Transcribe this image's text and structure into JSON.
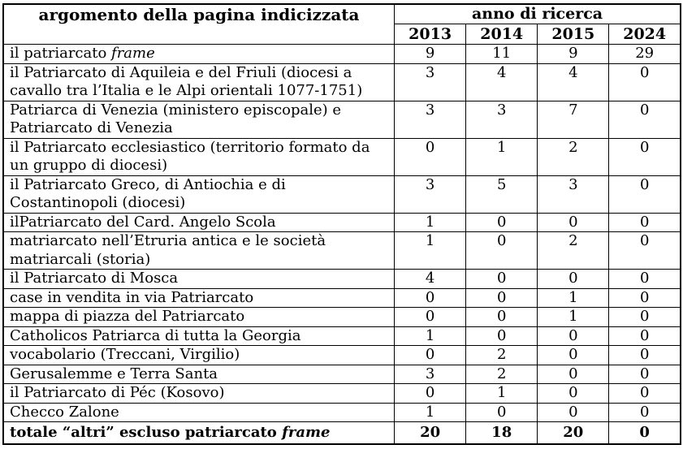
{
  "chart_data": {
    "type": "table",
    "topic_header": "argomento della pagina indicizzata",
    "year_group_header": "anno di ricerca",
    "year_columns": [
      "2013",
      "2014",
      "2015",
      "2024"
    ],
    "rows": [
      {
        "text": "il patriarcato ",
        "italic": "frame",
        "values": [
          "9",
          "11",
          "9",
          "29"
        ],
        "bold": false
      },
      {
        "text": "il Patriarcato di Aquileia e del Friuli (diocesi a cavallo tra l’Italia e le Alpi orientali 1077-1751)",
        "italic": "",
        "values": [
          "3",
          "4",
          "4",
          "0"
        ],
        "bold": false
      },
      {
        "text": "Patriarca di Venezia (ministero episcopale) e Patriarcato di Venezia",
        "italic": "",
        "values": [
          "3",
          "3",
          "7",
          "0"
        ],
        "bold": false
      },
      {
        "text": "il Patriarcato ecclesiastico (territorio formato da un gruppo di diocesi)",
        "italic": "",
        "values": [
          "0",
          "1",
          "2",
          "0"
        ],
        "bold": false
      },
      {
        "text": "il Patriarcato Greco, di Antiochia e di Costantinopoli (diocesi)",
        "italic": "",
        "values": [
          "3",
          "5",
          "3",
          "0"
        ],
        "bold": false
      },
      {
        "text": "ilPatriarcato del Card. Angelo Scola",
        "italic": "",
        "values": [
          "1",
          "0",
          "0",
          "0"
        ],
        "bold": false
      },
      {
        "text": "matriarcato nell’Etruria antica e le società matriarcali (storia)",
        "italic": "",
        "values": [
          "1",
          "0",
          "2",
          "0"
        ],
        "bold": false
      },
      {
        "text": "il Patriarcato di Mosca",
        "italic": "",
        "values": [
          "4",
          "0",
          "0",
          "0"
        ],
        "bold": false
      },
      {
        "text": "case in vendita in via Patriarcato",
        "italic": "",
        "values": [
          "0",
          "0",
          "1",
          "0"
        ],
        "bold": false
      },
      {
        "text": "mappa di piazza del Patriarcato",
        "italic": "",
        "values": [
          "0",
          "0",
          "1",
          "0"
        ],
        "bold": false
      },
      {
        "text": "Catholicos Patriarca di tutta la Georgia",
        "italic": "",
        "values": [
          "1",
          "0",
          "0",
          "0"
        ],
        "bold": false
      },
      {
        "text": "vocabolario (Treccani, Virgilio)",
        "italic": "",
        "values": [
          "0",
          "2",
          "0",
          "0"
        ],
        "bold": false
      },
      {
        "text": "Gerusalemme e Terra Santa",
        "italic": "",
        "values": [
          "3",
          "2",
          "0",
          "0"
        ],
        "bold": false
      },
      {
        "text": "il Patriarcato di Péc (Kosovo)",
        "italic": "",
        "values": [
          "0",
          "1",
          "0",
          "0"
        ],
        "bold": false
      },
      {
        "text": "Checco Zalone",
        "italic": "",
        "values": [
          "1",
          "0",
          "0",
          "0"
        ],
        "bold": false
      },
      {
        "text": "totale “altri” escluso patriarcato ",
        "italic": "frame",
        "values": [
          "20",
          "18",
          "20",
          "0"
        ],
        "bold": true
      }
    ]
  }
}
